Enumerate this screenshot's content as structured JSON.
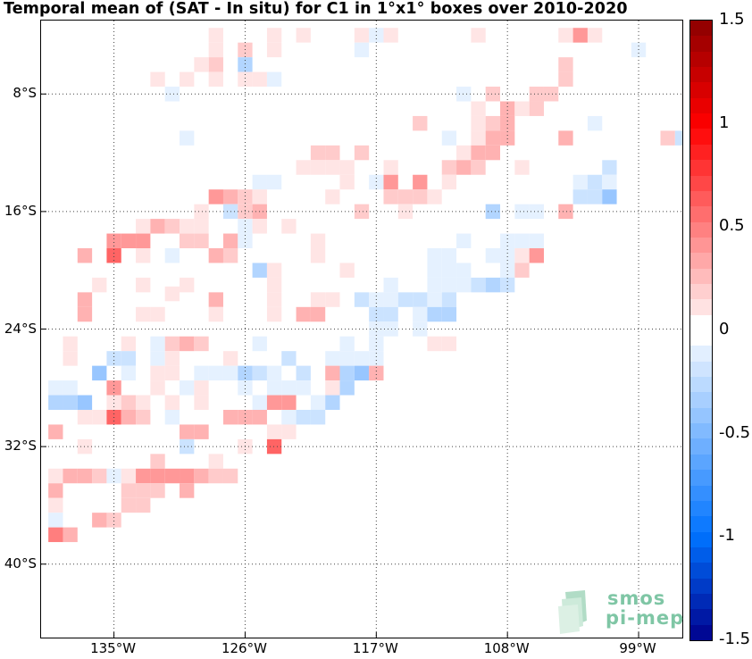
{
  "title": "Temporal mean of (SAT - In situ) for C1 in 1°x1° boxes over 2010-2020",
  "y_axis": {
    "ticks": [
      {
        "label": "8°S",
        "lat": -8
      },
      {
        "label": "16°S",
        "lat": -16
      },
      {
        "label": "24°S",
        "lat": -24
      },
      {
        "label": "32°S",
        "lat": -32
      },
      {
        "label": "40°S",
        "lat": -40
      }
    ]
  },
  "x_axis": {
    "ticks": [
      {
        "label": "135°W",
        "lon": -135
      },
      {
        "label": "126°W",
        "lon": -126
      },
      {
        "label": "117°W",
        "lon": -117
      },
      {
        "label": "108°W",
        "lon": -108
      },
      {
        "label": "99°W",
        "lon": -99
      }
    ]
  },
  "colorbar": {
    "range": [
      -1.5,
      1.5
    ],
    "ticks": [
      "1.5",
      "1",
      "0.5",
      "0",
      "-0.5",
      "-1",
      "-1.5"
    ],
    "colors": {
      "negative_max": "#00008b",
      "neutral": "#ffffff",
      "positive_max": "#8b0000"
    }
  },
  "logo": {
    "line1": "smos",
    "line2": "pi-mep",
    "color": "#7fc6a5"
  },
  "chart_data": {
    "type": "heatmap",
    "title": "Temporal mean of (SAT - In situ) for C1 in 1°x1° boxes over 2010-2020",
    "lon_range": [
      -140,
      -96
    ],
    "lat_range": [
      -45,
      -3
    ],
    "grid": true,
    "cell_size_deg": 1,
    "value_range": [
      -1.5,
      1.5
    ],
    "cells": [
      [
        -128,
        -4,
        0.1
      ],
      [
        -124,
        -4,
        0.1
      ],
      [
        -122,
        -4,
        0.1
      ],
      [
        -118,
        -4,
        0.1
      ],
      [
        -117,
        -4,
        -0.1
      ],
      [
        -116,
        -4,
        0.1
      ],
      [
        -110,
        -4,
        0.1
      ],
      [
        -104,
        -4,
        0.1
      ],
      [
        -103,
        -4,
        0.4
      ],
      [
        -102,
        -4,
        0.1
      ],
      [
        -128,
        -5,
        0.1
      ],
      [
        -126,
        -5,
        0.2
      ],
      [
        -124,
        -5,
        0.1
      ],
      [
        -118,
        -5,
        -0.1
      ],
      [
        -99,
        -5,
        -0.1
      ],
      [
        -128,
        -6,
        0.2
      ],
      [
        -126,
        -6,
        -0.3
      ],
      [
        -126,
        -7,
        0.1
      ],
      [
        -130,
        -7,
        0.1
      ],
      [
        -129,
        -6,
        0.1
      ],
      [
        -104,
        -6,
        0.2
      ],
      [
        -132,
        -7,
        0.1
      ],
      [
        -128,
        -7,
        0.1
      ],
      [
        -125,
        -7,
        0.1
      ],
      [
        -124,
        -7,
        -0.1
      ],
      [
        -104,
        -7,
        0.2
      ],
      [
        -105,
        -8,
        0.2
      ],
      [
        -106,
        -8,
        0.2
      ],
      [
        -106,
        -9,
        0.2
      ],
      [
        -131,
        -8,
        -0.1
      ],
      [
        -111,
        -8,
        -0.1
      ],
      [
        -109,
        -8,
        0.2
      ],
      [
        -108,
        -9,
        0.3
      ],
      [
        -107,
        -9,
        0.1
      ],
      [
        -110,
        -9,
        0.1
      ],
      [
        -110,
        -10,
        0.1
      ],
      [
        -114,
        -10,
        0.2
      ],
      [
        -109,
        -10,
        0.2
      ],
      [
        -108,
        -10,
        0.3
      ],
      [
        -102,
        -10,
        -0.1
      ],
      [
        -130,
        -11,
        -0.1
      ],
      [
        -112,
        -11,
        -0.1
      ],
      [
        -110,
        -11,
        0.1
      ],
      [
        -109,
        -11,
        0.3
      ],
      [
        -108,
        -11,
        0.3
      ],
      [
        -104,
        -11,
        0.3
      ],
      [
        -97,
        -11,
        0.2
      ],
      [
        -96,
        -11,
        -0.2
      ],
      [
        -121,
        -12,
        0.2
      ],
      [
        -120,
        -12,
        0.2
      ],
      [
        -118,
        -12,
        0.2
      ],
      [
        -111,
        -12,
        0.1
      ],
      [
        -110,
        -12,
        0.3
      ],
      [
        -109,
        -12,
        0.3
      ],
      [
        -122,
        -13,
        0.1
      ],
      [
        -121,
        -13,
        0.1
      ],
      [
        -120,
        -13,
        0.1
      ],
      [
        -119,
        -13,
        0.1
      ],
      [
        -116,
        -13,
        0.1
      ],
      [
        -112,
        -13,
        0.2
      ],
      [
        -111,
        -13,
        0.3
      ],
      [
        -110,
        -13,
        0.2
      ],
      [
        -107,
        -13,
        0.1
      ],
      [
        -101,
        -13,
        -0.2
      ],
      [
        -125,
        -14,
        -0.1
      ],
      [
        -124,
        -14,
        -0.1
      ],
      [
        -119,
        -14,
        0.1
      ],
      [
        -117,
        -14,
        -0.1
      ],
      [
        -116,
        -14,
        0.4
      ],
      [
        -114,
        -14,
        0.4
      ],
      [
        -112,
        -14,
        0.1
      ],
      [
        -103,
        -14,
        -0.1
      ],
      [
        -102,
        -14,
        -0.2
      ],
      [
        -101,
        -14,
        -0.1
      ],
      [
        -128,
        -15,
        0.4
      ],
      [
        -127,
        -15,
        0.3
      ],
      [
        -126,
        -15,
        0.2
      ],
      [
        -125,
        -15,
        0.1
      ],
      [
        -120,
        -15,
        0.1
      ],
      [
        -116,
        -15,
        0.2
      ],
      [
        -115,
        -15,
        0.2
      ],
      [
        -114,
        -15,
        0.2
      ],
      [
        -113,
        -15,
        0.1
      ],
      [
        -103,
        -15,
        -0.2
      ],
      [
        -102,
        -15,
        -0.2
      ],
      [
        -101,
        -15,
        -0.4
      ],
      [
        -129,
        -16,
        0.1
      ],
      [
        -127,
        -16,
        -0.2
      ],
      [
        -126,
        -16,
        0.2
      ],
      [
        -125,
        -16,
        0.3
      ],
      [
        -118,
        -16,
        0.2
      ],
      [
        -115,
        -16,
        0.1
      ],
      [
        -109,
        -16,
        -0.3
      ],
      [
        -104,
        -16,
        0.3
      ],
      [
        -107,
        -16,
        -0.1
      ],
      [
        -106,
        -16,
        -0.1
      ],
      [
        -133,
        -17,
        0.1
      ],
      [
        -132,
        -17,
        0.3
      ],
      [
        -131,
        -17,
        0.2
      ],
      [
        -130,
        -17,
        0.1
      ],
      [
        -129,
        -17,
        0.1
      ],
      [
        -126,
        -17,
        -0.1
      ],
      [
        -125,
        -17,
        0.1
      ],
      [
        -123,
        -17,
        0.1
      ],
      [
        -135,
        -18,
        0.4
      ],
      [
        -134,
        -18,
        0.4
      ],
      [
        -133,
        -18,
        0.4
      ],
      [
        -130,
        -18,
        0.2
      ],
      [
        -129,
        -18,
        0.2
      ],
      [
        -127,
        -18,
        0.3
      ],
      [
        -126,
        -18,
        -0.1
      ],
      [
        -121,
        -18,
        0.1
      ],
      [
        -111,
        -18,
        -0.1
      ],
      [
        -108,
        -18,
        -0.1
      ],
      [
        -107,
        -18,
        -0.1
      ],
      [
        -106,
        -18,
        -0.1
      ],
      [
        -137,
        -19,
        0.3
      ],
      [
        -135,
        -19,
        0.6
      ],
      [
        -133,
        -19,
        0.1
      ],
      [
        -131,
        -19,
        -0.1
      ],
      [
        -128,
        -19,
        0.3
      ],
      [
        -127,
        -19,
        0.2
      ],
      [
        -121,
        -19,
        0.1
      ],
      [
        -113,
        -19,
        -0.1
      ],
      [
        -112,
        -19,
        -0.1
      ],
      [
        -109,
        -19,
        -0.1
      ],
      [
        -108,
        -19,
        -0.1
      ],
      [
        -107,
        -19,
        0.1
      ],
      [
        -106,
        -19,
        0.4
      ],
      [
        -125,
        -20,
        -0.3
      ],
      [
        -124,
        -20,
        0.1
      ],
      [
        -119,
        -20,
        0.1
      ],
      [
        -113,
        -20,
        -0.1
      ],
      [
        -112,
        -20,
        -0.1
      ],
      [
        -111,
        -20,
        -0.1
      ],
      [
        -108,
        -20,
        -0.1
      ],
      [
        -107,
        -20,
        0.2
      ],
      [
        -136,
        -21,
        0.1
      ],
      [
        -133,
        -21,
        0.1
      ],
      [
        -130,
        -21,
        0.1
      ],
      [
        -124,
        -21,
        0.1
      ],
      [
        -116,
        -21,
        -0.1
      ],
      [
        -113,
        -21,
        -0.1
      ],
      [
        -112,
        -21,
        -0.1
      ],
      [
        -111,
        -21,
        -0.1
      ],
      [
        -110,
        -21,
        -0.2
      ],
      [
        -109,
        -21,
        -0.3
      ],
      [
        -108,
        -21,
        -0.2
      ],
      [
        -131,
        -21.6,
        0.1
      ],
      [
        -128,
        -22,
        0.3
      ],
      [
        -124,
        -22,
        0.1
      ],
      [
        -117,
        -22,
        -0.1
      ],
      [
        -116,
        -22,
        -0.1
      ],
      [
        -115,
        -22,
        -0.2
      ],
      [
        -114,
        -22,
        -0.2
      ],
      [
        -113,
        -22,
        -0.1
      ],
      [
        -112,
        -22,
        -0.2
      ],
      [
        -137,
        -22,
        0.3
      ],
      [
        -121,
        -22,
        0.1
      ],
      [
        -120,
        -22,
        0.1
      ],
      [
        -118,
        -22,
        -0.2
      ],
      [
        -117,
        -23,
        -0.2
      ],
      [
        -116,
        -23,
        -0.2
      ],
      [
        -114,
        -23,
        -0.1
      ],
      [
        -113,
        -23,
        -0.3
      ],
      [
        -112,
        -23,
        -0.3
      ],
      [
        -137,
        -23,
        0.3
      ],
      [
        -133,
        -23,
        0.1
      ],
      [
        -132,
        -23,
        0.1
      ],
      [
        -128,
        -23,
        0.1
      ],
      [
        -124,
        -23,
        0.1
      ],
      [
        -122,
        -23,
        0.3
      ],
      [
        -121,
        -23,
        0.3
      ],
      [
        -117,
        -24,
        -0.1
      ],
      [
        -116,
        -24,
        -0.1
      ],
      [
        -114,
        -24,
        -0.1
      ],
      [
        -138,
        -25,
        0.1
      ],
      [
        -134,
        -25,
        0.1
      ],
      [
        -132,
        -25,
        -0.1
      ],
      [
        -131,
        -25,
        0.2
      ],
      [
        -130,
        -25,
        0.3
      ],
      [
        -129,
        -25,
        0.2
      ],
      [
        -125,
        -25,
        -0.1
      ],
      [
        -119,
        -25,
        -0.1
      ],
      [
        -117,
        -25,
        -0.1
      ],
      [
        -113,
        -25,
        0.1
      ],
      [
        -112,
        -25,
        0.1
      ],
      [
        -138,
        -26,
        0.1
      ],
      [
        -135,
        -26,
        -0.2
      ],
      [
        -134,
        -26,
        -0.2
      ],
      [
        -132,
        -26,
        -0.1
      ],
      [
        -131,
        -26,
        0.1
      ],
      [
        -127,
        -26,
        0.1
      ],
      [
        -123,
        -26,
        -0.2
      ],
      [
        -120,
        -26,
        -0.1
      ],
      [
        -119,
        -26,
        -0.1
      ],
      [
        -118,
        -26,
        -0.1
      ],
      [
        -117,
        -26,
        -0.1
      ],
      [
        -136,
        -27,
        -0.4
      ],
      [
        -134,
        -27,
        -0.1
      ],
      [
        -132,
        -27,
        0.1
      ],
      [
        -131,
        -27,
        0.1
      ],
      [
        -129,
        -27,
        -0.1
      ],
      [
        -128,
        -27,
        -0.1
      ],
      [
        -127,
        -27,
        -0.1
      ],
      [
        -126,
        -27,
        -0.3
      ],
      [
        -125,
        -27,
        -0.2
      ],
      [
        -124,
        -27,
        -0.1
      ],
      [
        -122,
        -27,
        -0.2
      ],
      [
        -120,
        -27,
        0.3
      ],
      [
        -119,
        -27,
        -0.3
      ],
      [
        -118,
        -27,
        -0.4
      ],
      [
        -117,
        -27,
        0.3
      ],
      [
        -139,
        -28,
        -0.1
      ],
      [
        -138,
        -28,
        -0.1
      ],
      [
        -135,
        -28,
        0.4
      ],
      [
        -132,
        -28,
        0.1
      ],
      [
        -130,
        -28,
        -0.1
      ],
      [
        -129,
        -28,
        0.1
      ],
      [
        -126,
        -28,
        -0.1
      ],
      [
        -124,
        -28,
        -0.1
      ],
      [
        -123,
        -28,
        -0.1
      ],
      [
        -122,
        -28,
        -0.1
      ],
      [
        -120,
        -28,
        0.1
      ],
      [
        -119,
        -28,
        -0.3
      ],
      [
        -139,
        -29,
        -0.3
      ],
      [
        -138,
        -29,
        -0.3
      ],
      [
        -137,
        -29,
        -0.4
      ],
      [
        -135,
        -29,
        0.1
      ],
      [
        -134,
        -29,
        0.2
      ],
      [
        -133,
        -29,
        0.1
      ],
      [
        -131,
        -29,
        0.1
      ],
      [
        -129,
        -29,
        0.1
      ],
      [
        -125,
        -29,
        -0.1
      ],
      [
        -124,
        -29,
        0.4
      ],
      [
        -123,
        -29,
        0.4
      ],
      [
        -121,
        -29,
        -0.1
      ],
      [
        -120,
        -29,
        -0.3
      ],
      [
        -137,
        -30,
        0.1
      ],
      [
        -136,
        -30,
        0.1
      ],
      [
        -135,
        -30,
        0.6
      ],
      [
        -134,
        -30,
        0.3
      ],
      [
        -133,
        -30,
        0.2
      ],
      [
        -131,
        -30,
        -0.1
      ],
      [
        -127,
        -30,
        0.3
      ],
      [
        -126,
        -30,
        0.3
      ],
      [
        -125,
        -30,
        0.3
      ],
      [
        -123,
        -30,
        -0.1
      ],
      [
        -122,
        -30,
        -0.2
      ],
      [
        -121,
        -30,
        -0.2
      ],
      [
        -139,
        -31,
        0.3
      ],
      [
        -130,
        -31,
        0.3
      ],
      [
        -129,
        -31,
        0.3
      ],
      [
        -124,
        -31,
        0.1
      ],
      [
        -123,
        -31,
        0.1
      ],
      [
        -137,
        -32,
        0.1
      ],
      [
        -130,
        -32,
        -0.2
      ],
      [
        -126,
        -32,
        0.1
      ],
      [
        -124,
        -32,
        0.6
      ],
      [
        -132,
        -33,
        0.2
      ],
      [
        -128,
        -33,
        0.1
      ],
      [
        -139,
        -34,
        0.1
      ],
      [
        -138,
        -34,
        0.3
      ],
      [
        -137,
        -34,
        0.3
      ],
      [
        -136,
        -34,
        0.2
      ],
      [
        -135,
        -34,
        -0.1
      ],
      [
        -134,
        -34,
        0.1
      ],
      [
        -133,
        -34,
        0.4
      ],
      [
        -132,
        -34,
        0.4
      ],
      [
        -131,
        -34,
        0.4
      ],
      [
        -130,
        -34,
        0.4
      ],
      [
        -129,
        -34,
        0.3
      ],
      [
        -128,
        -34,
        0.2
      ],
      [
        -127,
        -34,
        0.2
      ],
      [
        -139,
        -35,
        0.3
      ],
      [
        -134,
        -35,
        0.2
      ],
      [
        -133,
        -35,
        0.2
      ],
      [
        -132,
        -35,
        0.2
      ],
      [
        -130,
        -35,
        0.3
      ],
      [
        -134,
        -36,
        0.2
      ],
      [
        -133,
        -36,
        0.2
      ],
      [
        -139,
        -36,
        0.1
      ],
      [
        -139,
        -37,
        -0.1
      ],
      [
        -136,
        -37,
        0.3
      ],
      [
        -135,
        -37,
        0.2
      ],
      [
        -139,
        -38,
        0.5
      ],
      [
        -138,
        -38,
        0.3
      ]
    ]
  }
}
